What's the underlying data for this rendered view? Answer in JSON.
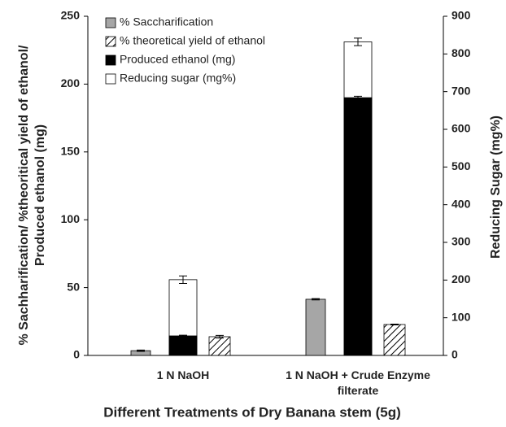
{
  "chart_data": {
    "type": "bar",
    "xlabel": "Different Treatments of Dry Banana stem (5g)",
    "ylabel": [
      "% Sachharification/ %theoritical yield of ethanol/",
      "Produced ethanol (mg)"
    ],
    "y2label": "Reducing Sugar (mg%)",
    "categories": [
      "1 N NaOH",
      "1 N NaOH + Crude Enzyme filterate"
    ],
    "series": [
      {
        "name": "% Saccharification",
        "color": "#a6a6a6",
        "values": [
          3.5,
          41.4
        ],
        "errors": [
          0.5,
          0.5
        ]
      },
      {
        "name": "% theoretical yield of ethanol",
        "color": "#ffffff",
        "pattern": "hatch",
        "values": [
          13.8,
          22.8
        ],
        "errors": [
          1,
          0.3
        ]
      },
      {
        "name": "Produced ethanol (mg)",
        "color": "#000000",
        "values": [
          14.4,
          190
        ],
        "errors": [
          0.5,
          1
        ]
      },
      {
        "name": "Reducing sugar (mg%)",
        "color": "#ffffff",
        "axis": "y2",
        "values": [
          201,
          832
        ],
        "errors": [
          10,
          10
        ]
      }
    ],
    "ylim": [
      0,
      250
    ],
    "yticks": [
      0,
      50,
      100,
      150,
      200,
      250
    ],
    "y2lim": [
      0,
      900
    ],
    "y2ticks": [
      0,
      100,
      200,
      300,
      400,
      500,
      600,
      700,
      800,
      900
    ],
    "legend": "upper-left"
  }
}
